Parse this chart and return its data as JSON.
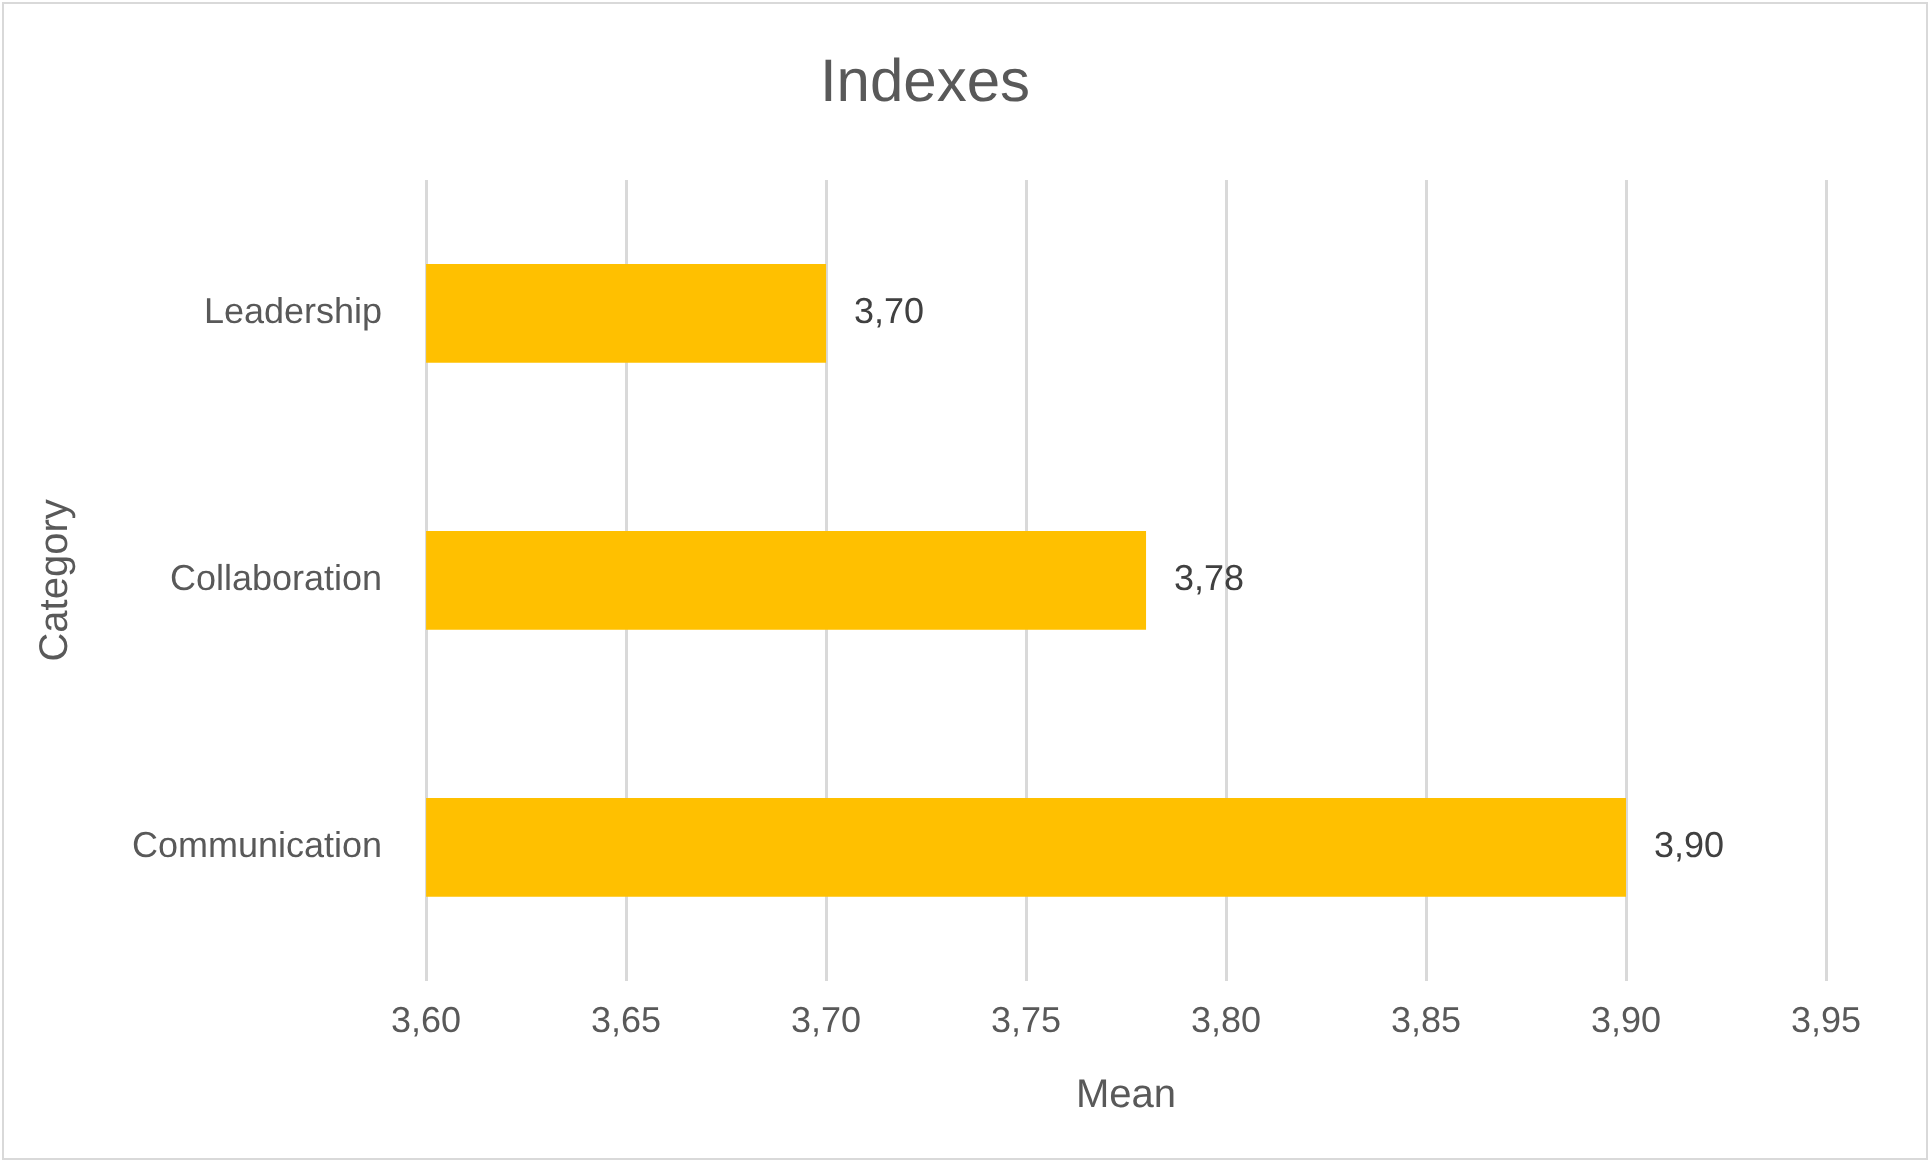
{
  "chart_data": {
    "type": "bar",
    "title": "Indexes",
    "xlabel": "Mean",
    "ylabel": "Category",
    "orientation": "horizontal",
    "categories": [
      "Leadership",
      "Collaboration",
      "Communication"
    ],
    "values": [
      3.7,
      3.78,
      3.9
    ],
    "color": "#ffc000",
    "value_labels": [
      "3,70",
      "3,78",
      "3,90"
    ],
    "xlim": [
      3.6,
      3.95
    ],
    "xticks": [
      {
        "value": 3.6,
        "label": "3,60"
      },
      {
        "value": 3.65,
        "label": "3,65"
      },
      {
        "value": 3.7,
        "label": "3,70"
      },
      {
        "value": 3.75,
        "label": "3,75"
      },
      {
        "value": 3.8,
        "label": "3,80"
      },
      {
        "value": 3.85,
        "label": "3,85"
      },
      {
        "value": 3.9,
        "label": "3,90"
      },
      {
        "value": 3.95,
        "label": "3,95"
      }
    ],
    "grid": "x",
    "legend": false
  }
}
